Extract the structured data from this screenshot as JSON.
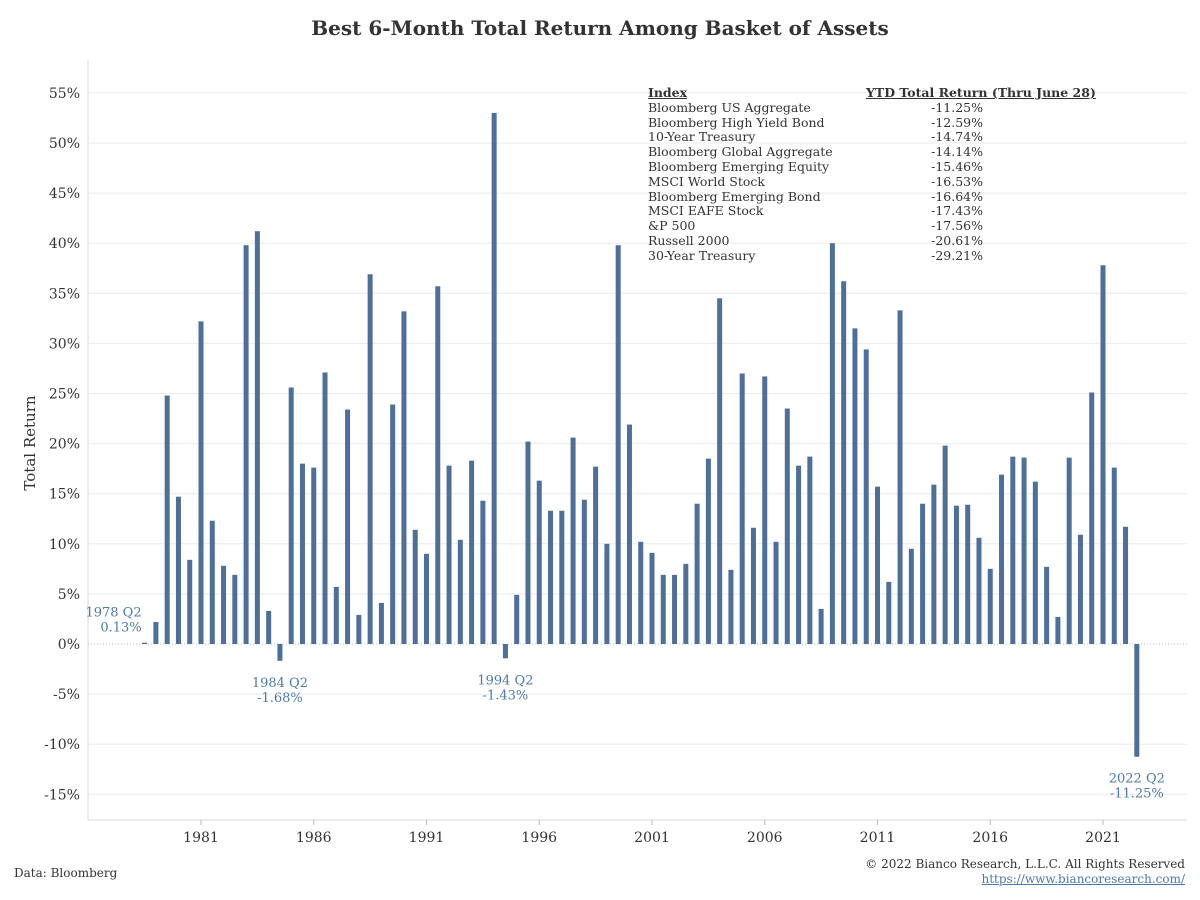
{
  "title": "Best 6-Month Total Return Among Basket of Assets",
  "footer": {
    "source": "Data: Bloomberg",
    "copyright": "© 2022 Bianco Research, L.L.C. All Rights Reserved",
    "url": "https://www.biancoresearch.com/"
  },
  "legend": {
    "header_index": "Index",
    "header_value": "YTD Total Return (Thru June 28)",
    "rows": [
      {
        "name": "Bloomberg US Aggregate",
        "value": "-11.25%"
      },
      {
        "name": "Bloomberg High Yield Bond",
        "value": "-12.59%"
      },
      {
        "name": "10-Year Treasury",
        "value": "-14.74%"
      },
      {
        "name": "Bloomberg Global Aggregate",
        "value": "-14.14%"
      },
      {
        "name": "Bloomberg Emerging Equity",
        "value": "-15.46%"
      },
      {
        "name": "MSCI World Stock",
        "value": "-16.53%"
      },
      {
        "name": "Bloomberg Emerging Bond",
        "value": "-16.64%"
      },
      {
        "name": "MSCI EAFE Stock",
        "value": "-17.43%"
      },
      {
        "name": "&P 500",
        "value": "-17.56%"
      },
      {
        "name": "Russell 2000",
        "value": "-20.61%"
      },
      {
        "name": "30-Year Treasury",
        "value": "-29.21%"
      }
    ]
  },
  "colors": {
    "bar": "#4e6f9a",
    "annotation": "#4e79a7",
    "grid": "#ebebeb",
    "zero": "#bbbbbb"
  },
  "chart_data": {
    "type": "bar",
    "xlabel": "",
    "ylabel": "Total Return",
    "ylim": [
      -17,
      58
    ],
    "xlim": [
      1977.5,
      2023.5
    ],
    "grid": true,
    "y_ticks": [
      55,
      50,
      45,
      40,
      35,
      30,
      25,
      20,
      15,
      10,
      5,
      0,
      -5,
      -10,
      -15
    ],
    "y_tick_labels": [
      "55%",
      "50%",
      "45%",
      "40%",
      "35%",
      "30%",
      "25%",
      "20%",
      "15%",
      "10%",
      "5%",
      "0%",
      "-5%",
      "-10%",
      "-15%"
    ],
    "x_ticks": [
      1981,
      1986,
      1991,
      1996,
      2001,
      2006,
      2011,
      2016,
      2021
    ],
    "x_tick_labels": [
      "1981",
      "1986",
      "1991",
      "1996",
      "2001",
      "2006",
      "2011",
      "2016",
      "2021"
    ],
    "categories": [
      "1978 Q2",
      "1978 Q4",
      "1979 Q2",
      "1979 Q4",
      "1980 Q2",
      "1980 Q4",
      "1981 Q2",
      "1981 Q4",
      "1982 Q2",
      "1982 Q4",
      "1983 Q2",
      "1983 Q4",
      "1984 Q2",
      "1984 Q4",
      "1985 Q2",
      "1985 Q4",
      "1986 Q2",
      "1986 Q4",
      "1987 Q2",
      "1987 Q4",
      "1988 Q2",
      "1988 Q4",
      "1989 Q2",
      "1989 Q4",
      "1990 Q2",
      "1990 Q4",
      "1991 Q2",
      "1991 Q4",
      "1992 Q2",
      "1992 Q4",
      "1993 Q2",
      "1993 Q4",
      "1994 Q2",
      "1994 Q4",
      "1995 Q2",
      "1995 Q4",
      "1996 Q2",
      "1996 Q4",
      "1997 Q2",
      "1997 Q4",
      "1998 Q2",
      "1998 Q4",
      "1999 Q2",
      "1999 Q4",
      "2000 Q2",
      "2000 Q4",
      "2001 Q2",
      "2001 Q4",
      "2002 Q2",
      "2002 Q4",
      "2003 Q2",
      "2003 Q4",
      "2004 Q2",
      "2004 Q4",
      "2005 Q2",
      "2005 Q4",
      "2006 Q2",
      "2006 Q4",
      "2007 Q2",
      "2007 Q4",
      "2008 Q2",
      "2008 Q4",
      "2009 Q2",
      "2009 Q4",
      "2010 Q2",
      "2010 Q4",
      "2011 Q2",
      "2011 Q4",
      "2012 Q2",
      "2012 Q4",
      "2013 Q2",
      "2013 Q4",
      "2014 Q2",
      "2014 Q4",
      "2015 Q2",
      "2015 Q4",
      "2016 Q2",
      "2016 Q4",
      "2017 Q2",
      "2017 Q4",
      "2018 Q2",
      "2018 Q4",
      "2019 Q2",
      "2019 Q4",
      "2020 Q2",
      "2020 Q4",
      "2021 Q2",
      "2021 Q4",
      "2022 Q2"
    ],
    "x": [
      1978.5,
      1979.0,
      1979.5,
      1980.0,
      1980.5,
      1981.0,
      1981.5,
      1982.0,
      1982.5,
      1983.0,
      1983.5,
      1984.0,
      1984.5,
      1985.0,
      1985.5,
      1986.0,
      1986.5,
      1987.0,
      1987.5,
      1988.0,
      1988.5,
      1989.0,
      1989.5,
      1990.0,
      1990.5,
      1991.0,
      1991.5,
      1992.0,
      1992.5,
      1993.0,
      1993.5,
      1994.0,
      1994.5,
      1995.0,
      1995.5,
      1996.0,
      1996.5,
      1997.0,
      1997.5,
      1998.0,
      1998.5,
      1999.0,
      1999.5,
      2000.0,
      2000.5,
      2001.0,
      2001.5,
      2002.0,
      2002.5,
      2003.0,
      2003.5,
      2004.0,
      2004.5,
      2005.0,
      2005.5,
      2006.0,
      2006.5,
      2007.0,
      2007.5,
      2008.0,
      2008.5,
      2009.0,
      2009.5,
      2010.0,
      2010.5,
      2011.0,
      2011.5,
      2012.0,
      2012.5,
      2013.0,
      2013.5,
      2014.0,
      2014.5,
      2015.0,
      2015.5,
      2016.0,
      2016.5,
      2017.0,
      2017.5,
      2018.0,
      2018.5,
      2019.0,
      2019.5,
      2020.0,
      2020.5,
      2021.0,
      2021.5,
      2022.0,
      2022.5
    ],
    "values": [
      0.13,
      2.2,
      24.8,
      14.7,
      8.4,
      32.2,
      12.3,
      7.8,
      6.9,
      39.8,
      41.2,
      3.3,
      -1.68,
      25.6,
      18.0,
      17.6,
      27.1,
      5.7,
      23.4,
      2.9,
      36.9,
      4.1,
      23.9,
      33.2,
      11.4,
      9.0,
      35.7,
      17.8,
      10.4,
      18.3,
      14.3,
      53.0,
      -1.43,
      4.9,
      20.2,
      16.3,
      13.3,
      13.3,
      20.6,
      14.4,
      17.7,
      10.0,
      39.8,
      21.9,
      10.2,
      9.1,
      6.9,
      6.9,
      8.0,
      14.0,
      18.5,
      34.5,
      7.4,
      27.0,
      11.6,
      26.7,
      10.2,
      23.5,
      17.8,
      18.7,
      3.5,
      40.0,
      36.2,
      31.5,
      29.4,
      15.7,
      6.2,
      33.3,
      9.5,
      14.0,
      15.9,
      19.8,
      13.8,
      13.9,
      10.6,
      7.5,
      16.9,
      18.7,
      18.6,
      16.2,
      7.7,
      2.7,
      18.6,
      10.9,
      25.1,
      37.8,
      17.6,
      11.7,
      -11.25
    ],
    "annotations": [
      {
        "label": "1978 Q2",
        "value_label": "0.13%",
        "x": 1978.5,
        "value": 0.13,
        "side": "left"
      },
      {
        "label": "1984 Q2",
        "value_label": "-1.68%",
        "x": 1984.5,
        "value": -1.68,
        "side": "below"
      },
      {
        "label": "1994 Q2",
        "value_label": "-1.43%",
        "x": 1994.5,
        "value": -1.43,
        "side": "below"
      },
      {
        "label": "2022 Q2",
        "value_label": "-11.25%",
        "x": 2022.5,
        "value": -11.25,
        "side": "below"
      }
    ]
  }
}
